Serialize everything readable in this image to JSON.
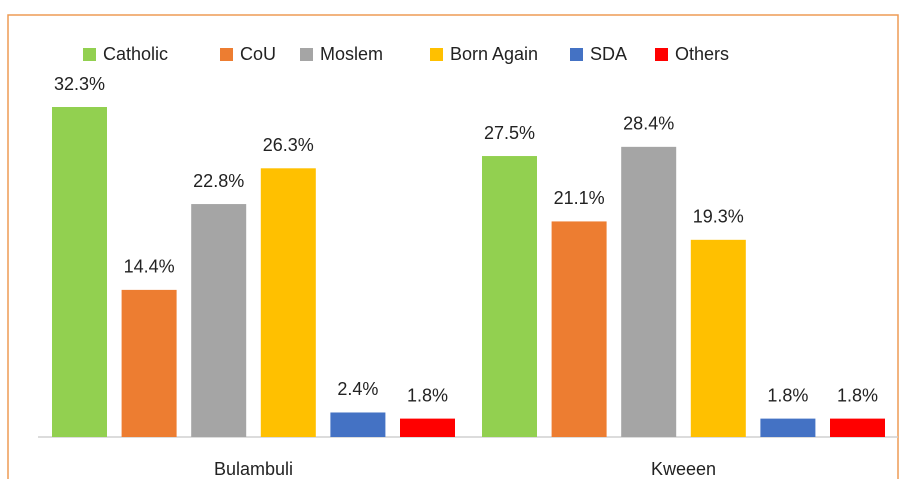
{
  "chart_data": {
    "type": "bar",
    "categories": [
      "Bulambuli",
      "Kweeen"
    ],
    "series": [
      {
        "name": "Catholic",
        "color": "#92d050",
        "values": [
          32.3,
          27.5
        ],
        "value_labels": [
          "32.3%",
          "27.5%"
        ]
      },
      {
        "name": "CoU",
        "color": "#ed7d31",
        "values": [
          14.4,
          21.1
        ],
        "value_labels": [
          "14.4%",
          "21.1%"
        ]
      },
      {
        "name": "Moslem",
        "color": "#a5a5a5",
        "values": [
          22.8,
          28.4
        ],
        "value_labels": [
          "22.8%",
          "28.4%"
        ]
      },
      {
        "name": "Born Again",
        "color": "#ffc000",
        "values": [
          26.3,
          19.3
        ],
        "value_labels": [
          "26.3%",
          "19.3%"
        ]
      },
      {
        "name": "SDA",
        "color": "#4472c4",
        "values": [
          2.4,
          1.8
        ],
        "value_labels": [
          "2.4%",
          "1.8%"
        ]
      },
      {
        "name": "Others",
        "color": "#ff0000",
        "values": [
          1.8,
          1.8
        ],
        "value_labels": [
          "1.8%",
          "1.8%"
        ]
      }
    ],
    "legend": "top"
  }
}
